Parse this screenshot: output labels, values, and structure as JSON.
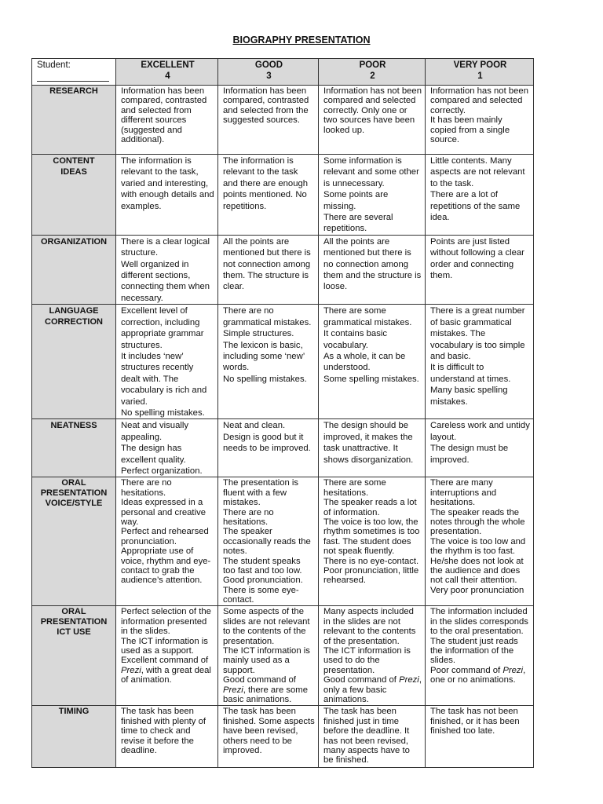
{
  "title": "BIOGRAPHY PRESENTATION",
  "header": {
    "student_label": "Student:",
    "levels": [
      {
        "name": "EXCELLENT",
        "score": "4"
      },
      {
        "name": "GOOD",
        "score": "3"
      },
      {
        "name": "POOR",
        "score": "2"
      },
      {
        "name": "VERY POOR",
        "score": "1"
      }
    ]
  },
  "rows": [
    {
      "criterion": [
        "RESEARCH"
      ],
      "tight": true,
      "cells": [
        [
          "Information has been compared, contrasted and selected from different sources (suggested and additional)."
        ],
        [
          "Information has been compared, contrasted and selected from the suggested sources."
        ],
        [
          "Information has not been compared and selected correctly. Only one or two sources have been looked up."
        ],
        [
          "Information has not been compared and selected correctly.",
          "It has been mainly copied from a single source."
        ]
      ]
    },
    {
      "criterion": [
        "CONTENT",
        "IDEAS"
      ],
      "cells": [
        [
          "The information is relevant to the task, varied and interesting, with enough details and examples."
        ],
        [
          "The information is relevant to the task and there are enough points mentioned. No repetitions."
        ],
        [
          "Some information is relevant and some other is unnecessary.",
          "Some points are missing.",
          "There are several repetitions."
        ],
        [
          "Little contents. Many aspects are not relevant to the task.",
          "There are a lot of repetitions of the same idea."
        ]
      ]
    },
    {
      "criterion": [
        "ORGANIZATION"
      ],
      "cells": [
        [
          "There is a clear logical structure.",
          "Well organized in different sections, connecting them when necessary."
        ],
        [
          "All the points are mentioned but there is not connection among them. The structure is clear."
        ],
        [
          "All the points are mentioned but there is no connection among them and the structure is loose."
        ],
        [
          "Points are just listed without following a clear order and connecting them."
        ]
      ]
    },
    {
      "criterion": [
        "LANGUAGE",
        "CORRECTION"
      ],
      "cells": [
        [
          "Excellent level of correction, including appropriate grammar structures.",
          "It includes ‘new’ structures recently dealt with. The vocabulary is rich and varied.",
          "No spelling mistakes."
        ],
        [
          "There are no grammatical mistakes. Simple structures.",
          "The lexicon is basic, including some ‘new’ words.",
          "No spelling mistakes."
        ],
        [
          "There are some grammatical mistakes.",
          "It contains basic vocabulary.",
          "As a whole, it can be understood.",
          "Some spelling mistakes."
        ],
        [
          "There is a great number of basic grammatical mistakes. The vocabulary is too simple and basic.",
          "It is difficult to understand at times.",
          "Many basic spelling mistakes."
        ]
      ]
    },
    {
      "criterion": [
        "NEATNESS"
      ],
      "cells": [
        [
          "Neat and visually appealing.",
          "The design has excellent quality.",
          "Perfect organization."
        ],
        [
          "Neat and clean.",
          "Design is good but it needs to be improved."
        ],
        [
          "The design should be improved, it makes the task unattractive. It shows disorganization."
        ],
        [
          "Careless work and untidy layout.",
          "The design must be improved."
        ]
      ]
    },
    {
      "criterion": [
        "ORAL",
        "PRESENTATION",
        "VOICE/STYLE"
      ],
      "tight": true,
      "cells": [
        [
          "There are no hesitations.",
          "Ideas expressed in a personal and creative way.",
          "Perfect and rehearsed pronunciation.",
          "Appropriate use of voice, rhythm and eye-contact to grab the audience’s attention."
        ],
        [
          "The presentation is fluent with a few mistakes.",
          "There are no hesitations.",
          "The speaker occasionally reads the notes.",
          "The student speaks too fast and too low.",
          "Good pronunciation.",
          "There is some eye-contact."
        ],
        [
          "There are some hesitations.",
          "The speaker reads a lot of information.",
          "The voice is too low, the rhythm sometimes is too fast. The student does not speak fluently.",
          "There is no eye-contact.",
          "Poor pronunciation, little rehearsed."
        ],
        [
          "There are many interruptions and hesitations.",
          "The speaker reads the notes through the whole presentation.",
          "The voice is too low and the rhythm is too fast.",
          "He/she does not look at the audience and does not call their attention.",
          "Very poor pronunciation"
        ]
      ]
    },
    {
      "criterion": [
        "ORAL",
        "PRESENTATION",
        "ICT USE"
      ],
      "tight": true,
      "cells": [
        [
          "Perfect selection of the information presented in the slides.",
          "The ICT information is used as a support.",
          [
            {
              "t": "Excellent command of "
            },
            {
              "t": "Prezi",
              "i": true
            },
            {
              "t": ", with a great deal of animation."
            }
          ]
        ],
        [
          "Some aspects of the slides are not relevant to the contents of the presentation.",
          "The ICT information is mainly used as a support.",
          [
            {
              "t": "Good command of "
            },
            {
              "t": "Prezi",
              "i": true
            },
            {
              "t": ", there are some basic animations."
            }
          ]
        ],
        [
          "Many aspects included in the slides are not relevant to the contents of the presentation.",
          "The ICT information is used to do the presentation.",
          [
            {
              "t": "Good command of "
            },
            {
              "t": "Prezi",
              "i": true
            },
            {
              "t": ", only a few basic animations."
            }
          ]
        ],
        [
          "The information included in the slides corresponds to the oral presentation.",
          "The student just reads the information of the slides.",
          [
            {
              "t": "Poor command of "
            },
            {
              "t": "Prezi",
              "i": true
            },
            {
              "t": ", one or no animations."
            }
          ]
        ]
      ]
    },
    {
      "criterion": [
        "TIMING"
      ],
      "tight": true,
      "cells": [
        [
          "The task has been finished with plenty of time to check and revise it before the deadline."
        ],
        [
          "The task has been finished. Some aspects have been revised, others need to be improved."
        ],
        [
          "The task has been finished just in time before the deadline. It has not been revised, many aspects have to be finished."
        ],
        [
          "The task has not been finished, or it has been finished too late."
        ]
      ]
    }
  ]
}
